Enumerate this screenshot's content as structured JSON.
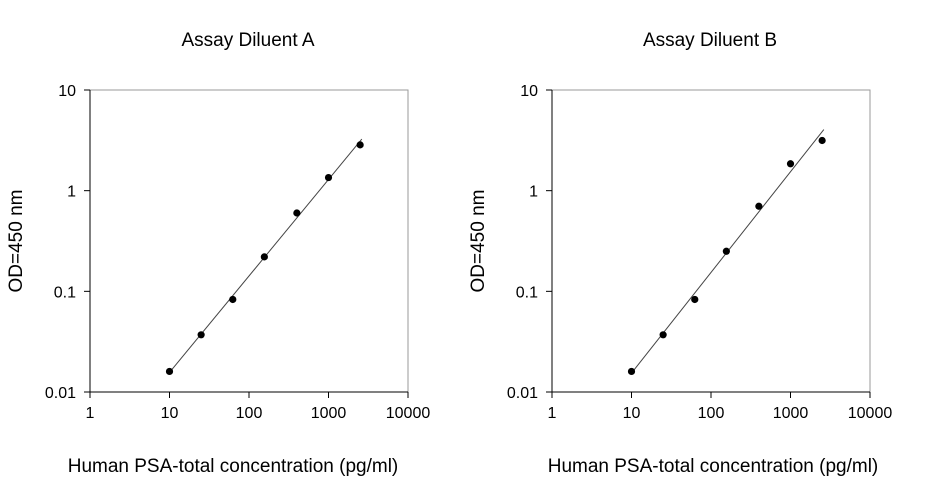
{
  "chart_data": [
    {
      "type": "scatter",
      "title": "Assay Diluent A",
      "xlabel": "Human PSA-total concentration (pg/ml)",
      "ylabel": "OD=450 nm",
      "xscale": "log",
      "yscale": "log",
      "xlim": [
        1,
        10000
      ],
      "ylim": [
        0.01,
        10
      ],
      "xticks": [
        "1",
        "10",
        "100",
        "1000",
        "10000"
      ],
      "yticks": [
        "0.01",
        "0.1",
        "1",
        "10"
      ],
      "grid": false,
      "legend": "none",
      "trendline": "log-log linear fit",
      "series": [
        {
          "x": [
            10,
            25,
            62.5,
            156,
            400,
            1000,
            2500
          ],
          "y": [
            0.016,
            0.037,
            0.083,
            0.22,
            0.6,
            1.35,
            2.85
          ]
        }
      ]
    },
    {
      "type": "scatter",
      "title": "Assay Diluent B",
      "xlabel": "Human PSA-total concentration (pg/ml)",
      "ylabel": "OD=450 nm",
      "xscale": "log",
      "yscale": "log",
      "xlim": [
        1,
        10000
      ],
      "ylim": [
        0.01,
        10
      ],
      "xticks": [
        "1",
        "10",
        "100",
        "1000",
        "10000"
      ],
      "yticks": [
        "0.01",
        "0.1",
        "1",
        "10"
      ],
      "grid": false,
      "legend": "none",
      "trendline": "log-log linear fit",
      "series": [
        {
          "x": [
            10,
            25,
            62.5,
            156,
            400,
            1000,
            2500
          ],
          "y": [
            0.016,
            0.037,
            0.083,
            0.25,
            0.7,
            1.85,
            3.15
          ]
        }
      ]
    }
  ]
}
